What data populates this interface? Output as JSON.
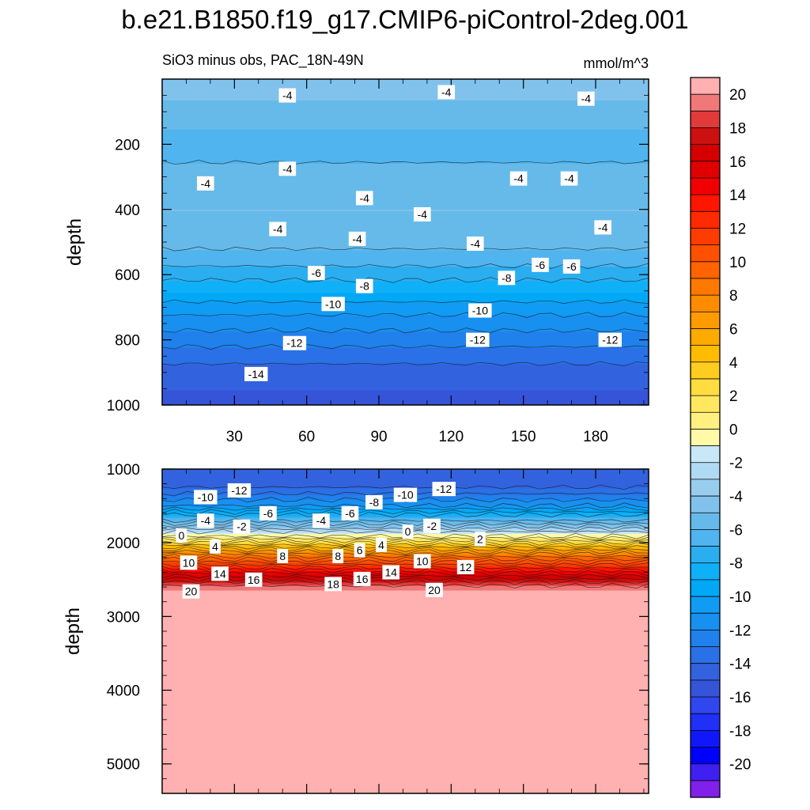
{
  "figure": {
    "title": "b.e21.B1850.f19_g17.CMIP6-piControl-2deg.001",
    "subtitle": "SiO3 minus obs, PAC_18N-49N",
    "units": "mmol/m^3"
  },
  "chart_data": [
    {
      "type": "heatmap",
      "panel": "upper",
      "ylabel": "depth",
      "xlim": [
        0,
        202
      ],
      "ylim": [
        0,
        1000
      ],
      "y_inverted": true,
      "xticks": [
        "30",
        "60",
        "90",
        "120",
        "150",
        "180"
      ],
      "xtick_values": [
        30,
        60,
        90,
        120,
        150,
        180
      ],
      "yticks": [
        "200",
        "400",
        "600",
        "800",
        "1000"
      ],
      "ytick_values": [
        200,
        400,
        600,
        800,
        1000
      ],
      "value_profile": {
        "depth": [
          20,
          100,
          200,
          300,
          400,
          500,
          600,
          700,
          800,
          900,
          1000
        ],
        "value": [
          -3.5,
          -4.5,
          -5.5,
          -4.6,
          -4.0,
          -4.6,
          -6.5,
          -9.5,
          -11.6,
          -13.5,
          -14.5
        ]
      },
      "contour_labels": [
        {
          "text": "-4",
          "x": 52,
          "y": 50
        },
        {
          "text": "-4",
          "x": 118,
          "y": 40
        },
        {
          "text": "-4",
          "x": 176,
          "y": 60
        },
        {
          "text": "-4",
          "x": 52,
          "y": 275
        },
        {
          "text": "-4",
          "x": 18,
          "y": 320
        },
        {
          "text": "-4",
          "x": 84,
          "y": 365
        },
        {
          "text": "-4",
          "x": 108,
          "y": 415
        },
        {
          "text": "-4",
          "x": 148,
          "y": 305
        },
        {
          "text": "-4",
          "x": 169,
          "y": 305
        },
        {
          "text": "-4",
          "x": 48,
          "y": 460
        },
        {
          "text": "-4",
          "x": 81,
          "y": 490
        },
        {
          "text": "-4",
          "x": 130,
          "y": 505
        },
        {
          "text": "-4",
          "x": 183,
          "y": 455
        },
        {
          "text": "-6",
          "x": 64,
          "y": 595
        },
        {
          "text": "-6",
          "x": 157,
          "y": 570
        },
        {
          "text": "-6",
          "x": 170,
          "y": 575
        },
        {
          "text": "-8",
          "x": 84,
          "y": 635
        },
        {
          "text": "-8",
          "x": 143,
          "y": 610
        },
        {
          "text": "-10",
          "x": 71,
          "y": 690
        },
        {
          "text": "-10",
          "x": 132,
          "y": 710
        },
        {
          "text": "-12",
          "x": 55,
          "y": 810
        },
        {
          "text": "-12",
          "x": 131,
          "y": 800
        },
        {
          "text": "-12",
          "x": 186,
          "y": 800
        },
        {
          "text": "-14",
          "x": 39,
          "y": 905
        }
      ]
    },
    {
      "type": "heatmap",
      "panel": "lower",
      "ylabel": "depth",
      "xlim": [
        0,
        202
      ],
      "ylim": [
        1000,
        5400
      ],
      "y_inverted": true,
      "xticks": [],
      "yticks": [
        "1000",
        "2000",
        "3000",
        "4000",
        "5000"
      ],
      "ytick_values": [
        1000,
        2000,
        3000,
        4000,
        5000
      ],
      "value_profile": {
        "depth": [
          1000,
          1250,
          1500,
          1700,
          1850,
          2000,
          2150,
          2300,
          2450,
          2550,
          2650,
          5400
        ],
        "value": [
          -14,
          -13,
          -10,
          -5,
          -1,
          4,
          9,
          13,
          17,
          19.5,
          21,
          21
        ]
      },
      "contour_labels": [
        {
          "text": "-10",
          "x": 18,
          "y": 1380
        },
        {
          "text": "-12",
          "x": 32,
          "y": 1290
        },
        {
          "text": "-12",
          "x": 117,
          "y": 1270
        },
        {
          "text": "-10",
          "x": 101,
          "y": 1350
        },
        {
          "text": "-8",
          "x": 88,
          "y": 1450
        },
        {
          "text": "-6",
          "x": 44,
          "y": 1600
        },
        {
          "text": "-6",
          "x": 78,
          "y": 1600
        },
        {
          "text": "-4",
          "x": 18,
          "y": 1700
        },
        {
          "text": "-4",
          "x": 66,
          "y": 1700
        },
        {
          "text": "-2",
          "x": 33,
          "y": 1780
        },
        {
          "text": "-2",
          "x": 112,
          "y": 1770
        },
        {
          "text": "0",
          "x": 8,
          "y": 1900
        },
        {
          "text": "0",
          "x": 102,
          "y": 1850
        },
        {
          "text": "2",
          "x": 132,
          "y": 1950
        },
        {
          "text": "4",
          "x": 22,
          "y": 2050
        },
        {
          "text": "4",
          "x": 91,
          "y": 2030
        },
        {
          "text": "6",
          "x": 82,
          "y": 2100
        },
        {
          "text": "8",
          "x": 50,
          "y": 2180
        },
        {
          "text": "8",
          "x": 73,
          "y": 2180
        },
        {
          "text": "10",
          "x": 11,
          "y": 2270
        },
        {
          "text": "10",
          "x": 108,
          "y": 2250
        },
        {
          "text": "12",
          "x": 126,
          "y": 2330
        },
        {
          "text": "14",
          "x": 24,
          "y": 2420
        },
        {
          "text": "14",
          "x": 95,
          "y": 2400
        },
        {
          "text": "16",
          "x": 38,
          "y": 2500
        },
        {
          "text": "16",
          "x": 83,
          "y": 2490
        },
        {
          "text": "18",
          "x": 71,
          "y": 2560
        },
        {
          "text": "20",
          "x": 12,
          "y": 2660
        },
        {
          "text": "20",
          "x": 113,
          "y": 2640
        }
      ]
    }
  ],
  "colorbar": {
    "labels": [
      "20",
      "18",
      "16",
      "14",
      "12",
      "10",
      "8",
      "6",
      "4",
      "2",
      "0",
      "-2",
      "-4",
      "-6",
      "-8",
      "-10",
      "-12",
      "-14",
      "-16",
      "-18",
      "-20"
    ],
    "levels": [
      -21,
      -20,
      -19,
      -18,
      -17,
      -16,
      -15,
      -14,
      -13,
      -12,
      -11,
      -10,
      -9,
      -8,
      -7,
      -6,
      -5,
      -4,
      -3,
      -2,
      -1,
      0,
      1,
      2,
      3,
      4,
      5,
      6,
      7,
      8,
      9,
      10,
      11,
      12,
      13,
      14,
      15,
      16,
      17,
      18,
      19,
      20,
      21
    ],
    "colors_top_to_bottom": [
      "#ffb0b0",
      "#f07878",
      "#e03a3a",
      "#cc1010",
      "#d40000",
      "#e00000",
      "#f00000",
      "#ff1500",
      "#ff2a00",
      "#ff3c00",
      "#ff5000",
      "#ff6400",
      "#ff7800",
      "#ff8c00",
      "#ff9a00",
      "#ffaa00",
      "#ffbc00",
      "#ffcc20",
      "#ffdc40",
      "#ffe860",
      "#fff080",
      "#fffaa8",
      "#c8e8f8",
      "#b0daf4",
      "#98cdee",
      "#80c2ec",
      "#66baea",
      "#50b4ee",
      "#2aaef0",
      "#10b0f8",
      "#00a8f6",
      "#109cf4",
      "#1890f0",
      "#2080ec",
      "#2a70e6",
      "#3262de",
      "#3654d8",
      "#3046ee",
      "#2030f6",
      "#1018fa",
      "#0000ff",
      "#4020f0",
      "#8020e8"
    ]
  }
}
